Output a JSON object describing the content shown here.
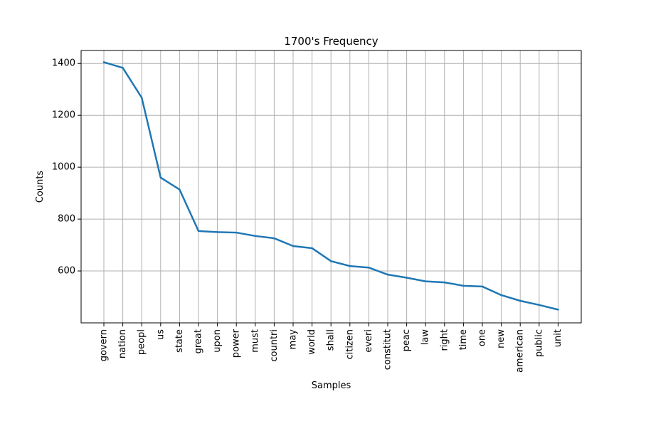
{
  "chart_data": {
    "type": "line",
    "title": "1700's Frequency",
    "xlabel": "Samples",
    "ylabel": "Counts",
    "categories": [
      "govern",
      "nation",
      "peopl",
      "us",
      "state",
      "great",
      "upon",
      "power",
      "must",
      "countri",
      "may",
      "world",
      "shall",
      "citizen",
      "everi",
      "constitut",
      "peac",
      "law",
      "right",
      "time",
      "one",
      "new",
      "american",
      "public",
      "unit"
    ],
    "values": [
      1405,
      1383,
      1268,
      960,
      914,
      754,
      750,
      748,
      735,
      726,
      696,
      688,
      638,
      619,
      613,
      586,
      574,
      560,
      556,
      543,
      540,
      507,
      485,
      469,
      451
    ],
    "ylim": [
      400,
      1450
    ],
    "yticks": [
      600,
      800,
      1000,
      1200,
      1400
    ],
    "grid": true,
    "line_color": "#1f77b4"
  }
}
